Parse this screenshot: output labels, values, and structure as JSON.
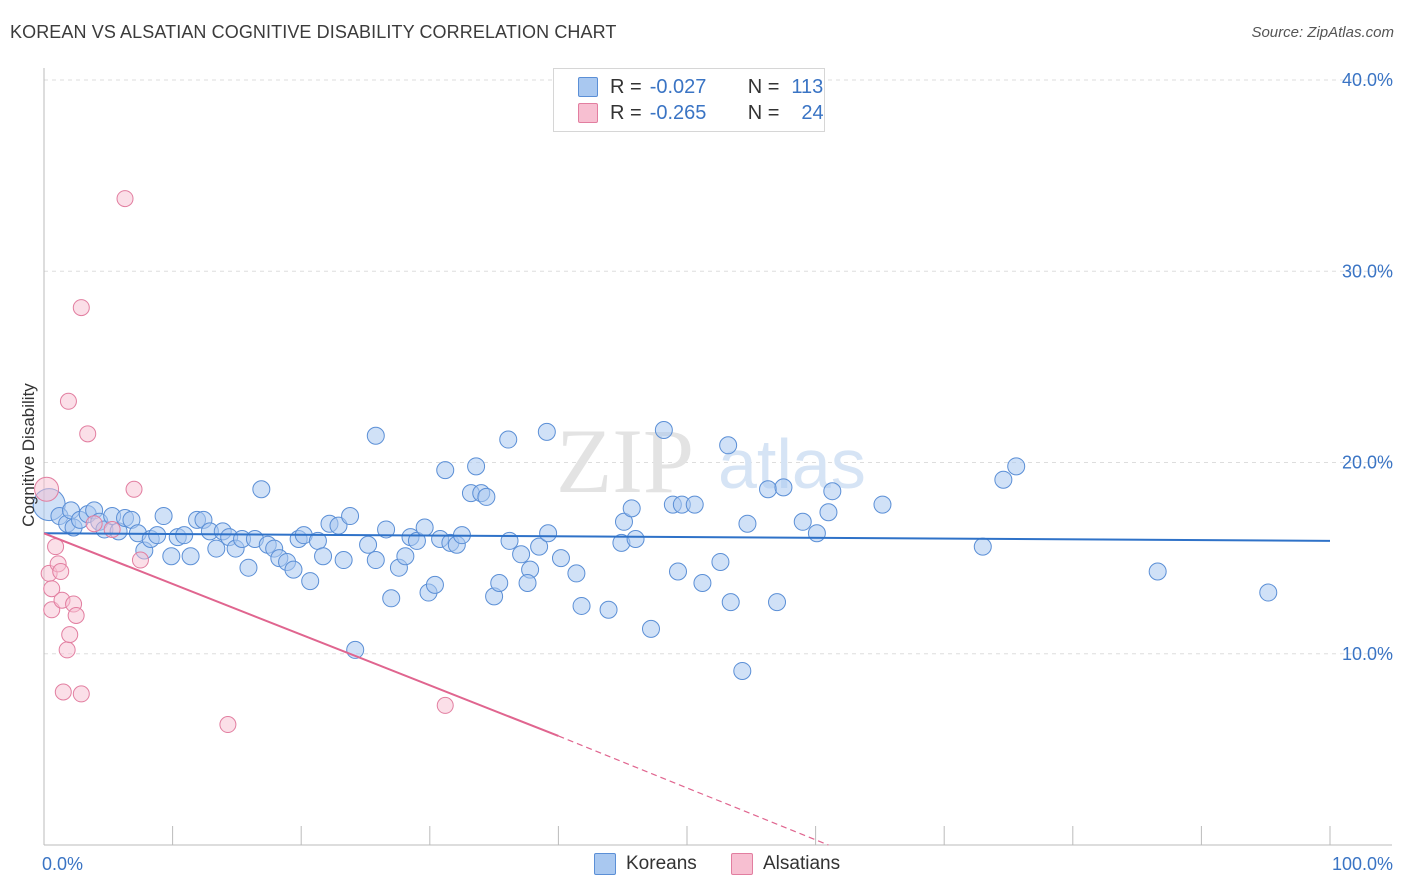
{
  "header": {
    "title": "KOREAN VS ALSATIAN COGNITIVE DISABILITY CORRELATION CHART",
    "source": "Source: ZipAtlas.com"
  },
  "legend": {
    "r_label": "R =",
    "n_label": "N =",
    "koreans": {
      "r": "-0.027",
      "n": "113"
    },
    "alsatians": {
      "r": "-0.265",
      "n": "24"
    }
  },
  "bottom_legend": {
    "koreans": "Koreans",
    "alsatians": "Alsatians"
  },
  "watermark": {
    "zip": "ZIP",
    "atlas": "atlas"
  },
  "colors": {
    "koreans_fill": "#a9c8f0",
    "koreans_stroke": "#5b8fd6",
    "koreans_line": "#2f72c8",
    "alsatians_fill": "#f7bfd1",
    "alsatians_stroke": "#e27ea0",
    "alsatians_line": "#e0658f",
    "tick_text": "#3a74c4"
  },
  "chart_data": {
    "type": "scatter",
    "title": "KOREAN VS ALSATIAN COGNITIVE DISABILITY CORRELATION CHART",
    "xlabel": "",
    "ylabel": "Cognitive Disability",
    "xlim": [
      0,
      100
    ],
    "ylim": [
      0,
      40
    ],
    "x_tick_labels": [
      "0.0%",
      "100.0%"
    ],
    "y_ticks": [
      10,
      20,
      30,
      40
    ],
    "y_tick_labels": [
      "10.0%",
      "20.0%",
      "30.0%",
      "40.0%"
    ],
    "grid": true,
    "series": [
      {
        "name": "Koreans",
        "trend": {
          "x": [
            0,
            100
          ],
          "y": [
            16.3,
            15.9
          ]
        },
        "points": [
          [
            0.4,
            17.8
          ],
          [
            1.2,
            17.2
          ],
          [
            1.8,
            16.8
          ],
          [
            2.1,
            17.5
          ],
          [
            2.3,
            16.6
          ],
          [
            2.8,
            17.0
          ],
          [
            3.4,
            17.3
          ],
          [
            3.9,
            17.5
          ],
          [
            4.3,
            16.9
          ],
          [
            4.7,
            16.5
          ],
          [
            5.3,
            17.2
          ],
          [
            5.8,
            16.4
          ],
          [
            6.3,
            17.1
          ],
          [
            6.8,
            17.0
          ],
          [
            7.3,
            16.3
          ],
          [
            7.8,
            15.4
          ],
          [
            8.3,
            16.0
          ],
          [
            8.8,
            16.2
          ],
          [
            9.3,
            17.2
          ],
          [
            9.9,
            15.1
          ],
          [
            10.4,
            16.1
          ],
          [
            10.9,
            16.2
          ],
          [
            11.4,
            15.1
          ],
          [
            11.9,
            17.0
          ],
          [
            12.4,
            17.0
          ],
          [
            12.9,
            16.4
          ],
          [
            13.4,
            15.5
          ],
          [
            13.9,
            16.4
          ],
          [
            14.4,
            16.1
          ],
          [
            14.9,
            15.5
          ],
          [
            15.4,
            16.0
          ],
          [
            15.9,
            14.5
          ],
          [
            16.4,
            16.0
          ],
          [
            16.9,
            18.6
          ],
          [
            17.4,
            15.7
          ],
          [
            17.9,
            15.5
          ],
          [
            18.3,
            15.0
          ],
          [
            18.9,
            14.8
          ],
          [
            19.4,
            14.4
          ],
          [
            19.8,
            16.0
          ],
          [
            20.2,
            16.2
          ],
          [
            20.7,
            13.8
          ],
          [
            21.3,
            15.9
          ],
          [
            21.7,
            15.1
          ],
          [
            22.2,
            16.8
          ],
          [
            22.9,
            16.7
          ],
          [
            23.3,
            14.9
          ],
          [
            23.8,
            17.2
          ],
          [
            24.2,
            10.2
          ],
          [
            25.2,
            15.7
          ],
          [
            25.8,
            14.9
          ],
          [
            25.8,
            21.4
          ],
          [
            26.6,
            16.5
          ],
          [
            27.0,
            12.9
          ],
          [
            27.6,
            14.5
          ],
          [
            28.1,
            15.1
          ],
          [
            28.5,
            16.1
          ],
          [
            29.0,
            15.9
          ],
          [
            29.6,
            16.6
          ],
          [
            29.9,
            13.2
          ],
          [
            30.4,
            13.6
          ],
          [
            30.8,
            16.0
          ],
          [
            31.2,
            19.6
          ],
          [
            31.6,
            15.8
          ],
          [
            32.1,
            15.7
          ],
          [
            32.5,
            16.2
          ],
          [
            33.2,
            18.4
          ],
          [
            33.6,
            19.8
          ],
          [
            34.0,
            18.4
          ],
          [
            34.4,
            18.2
          ],
          [
            35.0,
            13.0
          ],
          [
            35.4,
            13.7
          ],
          [
            36.1,
            21.2
          ],
          [
            36.2,
            15.9
          ],
          [
            37.1,
            15.2
          ],
          [
            37.8,
            14.4
          ],
          [
            37.6,
            13.7
          ],
          [
            38.5,
            15.6
          ],
          [
            39.1,
            21.6
          ],
          [
            39.2,
            16.3
          ],
          [
            40.2,
            15.0
          ],
          [
            41.4,
            14.2
          ],
          [
            41.8,
            12.5
          ],
          [
            43.9,
            12.3
          ],
          [
            44.9,
            15.8
          ],
          [
            45.1,
            16.9
          ],
          [
            45.7,
            17.6
          ],
          [
            46.0,
            16.0
          ],
          [
            47.2,
            11.3
          ],
          [
            48.2,
            21.7
          ],
          [
            48.9,
            17.8
          ],
          [
            49.3,
            14.3
          ],
          [
            49.6,
            17.8
          ],
          [
            50.6,
            17.8
          ],
          [
            51.2,
            13.7
          ],
          [
            52.6,
            14.8
          ],
          [
            53.2,
            20.9
          ],
          [
            53.4,
            12.7
          ],
          [
            54.3,
            9.1
          ],
          [
            54.7,
            16.8
          ],
          [
            56.3,
            18.6
          ],
          [
            57.0,
            12.7
          ],
          [
            57.5,
            18.7
          ],
          [
            59.0,
            16.9
          ],
          [
            60.1,
            16.3
          ],
          [
            61.0,
            17.4
          ],
          [
            61.3,
            18.5
          ],
          [
            65.2,
            17.8
          ],
          [
            73.0,
            15.6
          ],
          [
            74.6,
            19.1
          ],
          [
            75.6,
            19.8
          ],
          [
            86.6,
            14.3
          ],
          [
            95.2,
            13.2
          ]
        ],
        "r": -0.027,
        "n": 113
      },
      {
        "name": "Alsatians",
        "trend": {
          "x": [
            0,
            40
          ],
          "y": [
            16.3,
            5.7
          ]
        },
        "trend_extrapolated": {
          "x": [
            40,
            61
          ],
          "y": [
            5.7,
            0
          ]
        },
        "points": [
          [
            0.2,
            18.6
          ],
          [
            0.4,
            14.2
          ],
          [
            0.6,
            12.3
          ],
          [
            0.6,
            13.4
          ],
          [
            0.9,
            15.6
          ],
          [
            1.1,
            14.7
          ],
          [
            1.3,
            14.3
          ],
          [
            1.4,
            12.8
          ],
          [
            1.5,
            8.0
          ],
          [
            1.8,
            10.2
          ],
          [
            1.9,
            23.2
          ],
          [
            2.0,
            11.0
          ],
          [
            2.3,
            12.6
          ],
          [
            2.5,
            12.0
          ],
          [
            2.9,
            7.9
          ],
          [
            2.9,
            28.1
          ],
          [
            3.4,
            21.5
          ],
          [
            3.9,
            16.8
          ],
          [
            5.3,
            16.5
          ],
          [
            6.3,
            33.8
          ],
          [
            7.0,
            18.6
          ],
          [
            7.5,
            14.9
          ],
          [
            14.3,
            6.3
          ],
          [
            31.2,
            7.3
          ]
        ],
        "r": -0.265,
        "n": 24
      }
    ]
  }
}
